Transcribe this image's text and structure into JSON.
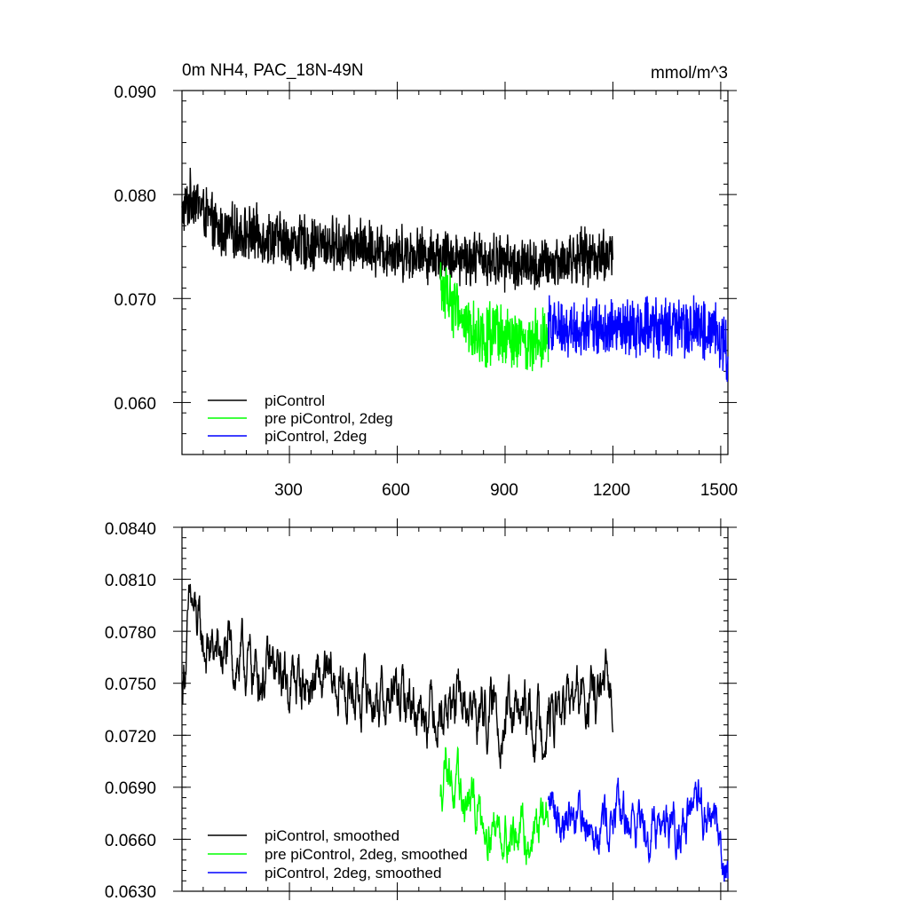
{
  "colors": {
    "series1": "#000000",
    "series2": "#00ff00",
    "series3": "#0000ff"
  },
  "chart_data": [
    {
      "type": "line",
      "title": "0m NH4, PAC_18N-49N",
      "units": "mmol/m^3",
      "xlabel": "",
      "ylabel": "",
      "xlim": [
        1,
        1520
      ],
      "ylim": [
        0.055,
        0.09
      ],
      "xticks": [
        300,
        600,
        900,
        1200,
        1500
      ],
      "xticklabels": [
        "300",
        "600",
        "900",
        "1200",
        "1500"
      ],
      "yticks": [
        0.06,
        0.07,
        0.08,
        0.09
      ],
      "yticklabels": [
        "0.060",
        "0.070",
        "0.080",
        "0.090"
      ],
      "legend_position": "bottom-left",
      "series": [
        {
          "name": "piControl",
          "color": "#000000",
          "x_start": 1,
          "x_end": 1200,
          "points": 1200,
          "keypoints": [
            [
              1,
              0.078
            ],
            [
              30,
              0.08
            ],
            [
              100,
              0.0765
            ],
            [
              200,
              0.0762
            ],
            [
              300,
              0.0755
            ],
            [
              400,
              0.0752
            ],
            [
              500,
              0.075
            ],
            [
              600,
              0.0745
            ],
            [
              700,
              0.0742
            ],
            [
              800,
              0.074
            ],
            [
              900,
              0.0735
            ],
            [
              1000,
              0.073
            ],
            [
              1100,
              0.074
            ],
            [
              1200,
              0.0742
            ]
          ],
          "amplitude": 0.0024
        },
        {
          "name": "pre piControl, 2deg",
          "color": "#00ff00",
          "x_start": 720,
          "x_end": 1020,
          "points": 300,
          "keypoints": [
            [
              720,
              0.071
            ],
            [
              740,
              0.0705
            ],
            [
              800,
              0.067
            ],
            [
              900,
              0.066
            ],
            [
              960,
              0.0655
            ],
            [
              1020,
              0.067
            ]
          ],
          "amplitude": 0.0028
        },
        {
          "name": "piControl, 2deg",
          "color": "#0000ff",
          "x_start": 1020,
          "x_end": 1520,
          "points": 500,
          "keypoints": [
            [
              1020,
              0.0672
            ],
            [
              1100,
              0.0672
            ],
            [
              1200,
              0.067
            ],
            [
              1300,
              0.0672
            ],
            [
              1400,
              0.067
            ],
            [
              1480,
              0.0672
            ],
            [
              1520,
              0.0648
            ]
          ],
          "amplitude": 0.0026
        }
      ]
    },
    {
      "type": "line",
      "title": "",
      "units": "",
      "xlabel": "",
      "ylabel": "",
      "xlim": [
        1,
        1520
      ],
      "ylim": [
        0.063,
        0.084
      ],
      "xticks": [
        300,
        600,
        900,
        1200,
        1500
      ],
      "xticklabels": [],
      "yticks": [
        0.063,
        0.066,
        0.069,
        0.072,
        0.075,
        0.078,
        0.081,
        0.084
      ],
      "yticklabels": [
        "0.0630",
        "0.0660",
        "0.0690",
        "0.0720",
        "0.0750",
        "0.0780",
        "0.0810",
        "0.0840"
      ],
      "legend_position": "bottom-left",
      "series": [
        {
          "name": "piControl, smoothed",
          "color": "#000000",
          "x_start": 1,
          "x_end": 1200,
          "points": 1200,
          "keypoints": [
            [
              1,
              0.0745
            ],
            [
              25,
              0.0795
            ],
            [
              60,
              0.077
            ],
            [
              120,
              0.0765
            ],
            [
              200,
              0.0758
            ],
            [
              300,
              0.0752
            ],
            [
              400,
              0.0748
            ],
            [
              500,
              0.0745
            ],
            [
              600,
              0.074
            ],
            [
              700,
              0.0738
            ],
            [
              800,
              0.0735
            ],
            [
              900,
              0.073
            ],
            [
              1000,
              0.0728
            ],
            [
              1100,
              0.074
            ],
            [
              1200,
              0.0742
            ]
          ],
          "amplitude": 0.0014
        },
        {
          "name": "pre piControl, 2deg, smoothed",
          "color": "#00ff00",
          "x_start": 720,
          "x_end": 1020,
          "points": 300,
          "keypoints": [
            [
              720,
              0.068
            ],
            [
              735,
              0.0715
            ],
            [
              760,
              0.0685
            ],
            [
              800,
              0.068
            ],
            [
              900,
              0.0665
            ],
            [
              960,
              0.066
            ],
            [
              1020,
              0.0675
            ]
          ],
          "amplitude": 0.0012
        },
        {
          "name": "piControl, 2deg, smoothed",
          "color": "#0000ff",
          "x_start": 1020,
          "x_end": 1520,
          "points": 500,
          "keypoints": [
            [
              1020,
              0.0678
            ],
            [
              1100,
              0.0675
            ],
            [
              1200,
              0.0672
            ],
            [
              1300,
              0.0672
            ],
            [
              1400,
              0.067
            ],
            [
              1480,
              0.0675
            ],
            [
              1520,
              0.064
            ]
          ],
          "amplitude": 0.0012
        }
      ]
    }
  ]
}
